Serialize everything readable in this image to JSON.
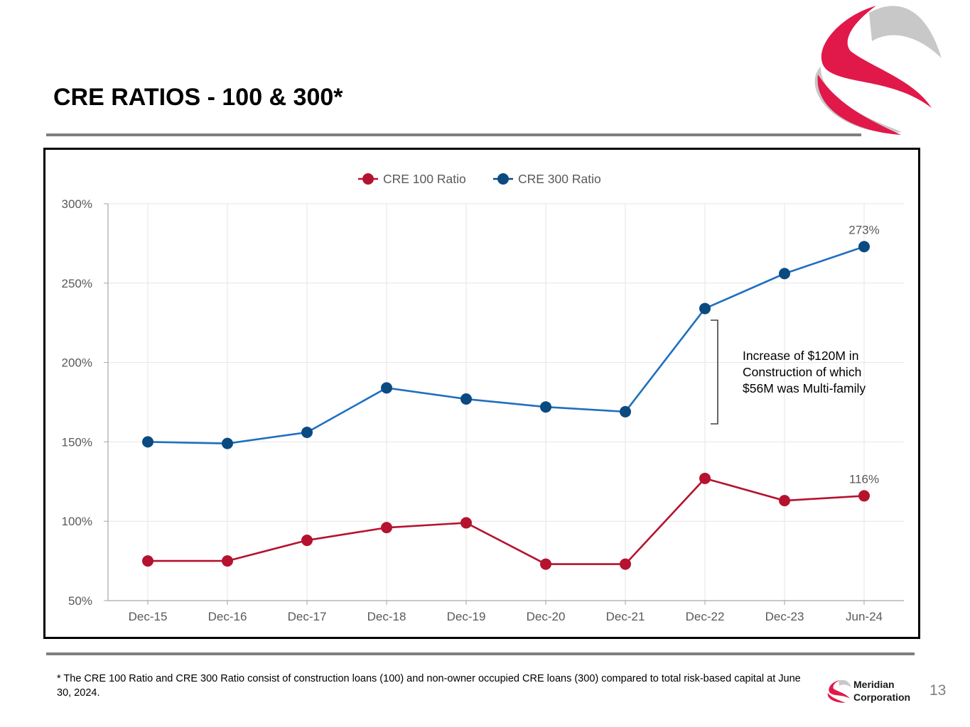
{
  "page": {
    "title": "CRE RATIOS - 100 & 300*",
    "footnote": "* The CRE 100 Ratio and CRE 300 Ratio consist of construction loans (100) and non-owner occupied CRE loans (300) compared to total risk-based capital at June 30, 2024.",
    "brand_line1": "Meridian",
    "brand_line2": "Corporation",
    "page_number": "13"
  },
  "colors": {
    "cre100": "#b5122f",
    "cre300_line": "#1f6fbf",
    "cre300_marker": "#0b4a80",
    "grid": "#e6e6e6",
    "axis_text": "#595959",
    "logo_red": "#e0194a",
    "logo_gray": "#c8c8c8"
  },
  "chart_data": {
    "type": "line",
    "title": "",
    "xlabel": "",
    "ylabel": "",
    "categories": [
      "Dec-15",
      "Dec-16",
      "Dec-17",
      "Dec-18",
      "Dec-19",
      "Dec-20",
      "Dec-21",
      "Dec-22",
      "Dec-23",
      "Jun-24"
    ],
    "series": [
      {
        "name": "CRE 100 Ratio",
        "values": [
          75,
          75,
          88,
          96,
          99,
          73,
          73,
          127,
          113,
          116
        ]
      },
      {
        "name": "CRE 300 Ratio",
        "values": [
          150,
          149,
          156,
          184,
          177,
          172,
          169,
          234,
          256,
          273
        ]
      }
    ],
    "ylim": [
      50,
      300
    ],
    "yticks": [
      50,
      100,
      150,
      200,
      250,
      300
    ],
    "ytick_labels": [
      "50%",
      "100%",
      "150%",
      "200%",
      "250%",
      "300%"
    ],
    "grid": true,
    "legend_position": "top-center",
    "data_labels": [
      {
        "series": "CRE 300 Ratio",
        "category": "Jun-24",
        "text": "273%"
      },
      {
        "series": "CRE 100 Ratio",
        "category": "Jun-24",
        "text": "116%"
      }
    ],
    "annotation": {
      "lines": [
        "Increase of $120M in",
        "Construction of which",
        "$56M was Multi-family"
      ]
    }
  }
}
